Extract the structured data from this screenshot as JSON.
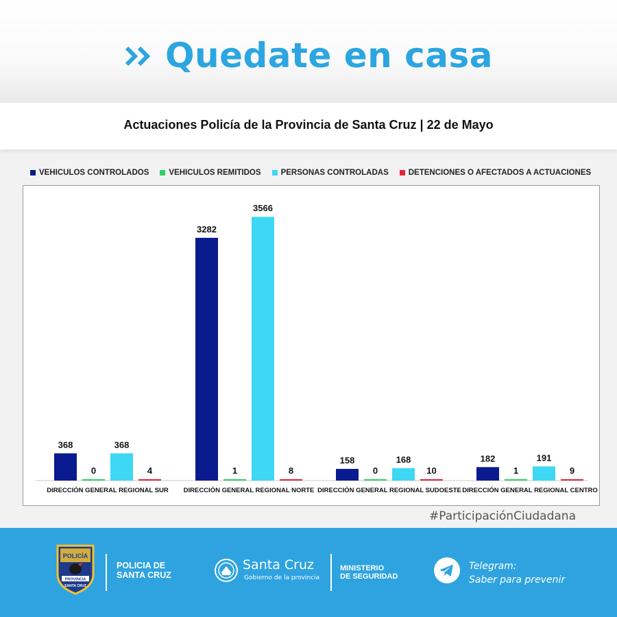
{
  "header": {
    "headline": "Quedate en casa",
    "headline_icon": "double-chevron-right-icon",
    "subtitle": "Actuaciones Policía de la Provincia de Santa Cruz | 22 de Mayo"
  },
  "chart_data": {
    "type": "bar",
    "title": "",
    "xlabel": "",
    "ylabel": "",
    "ylim": [
      0,
      3800
    ],
    "grid": false,
    "legend_position": "top",
    "categories": [
      "DIRECCIÓN GENERAL REGIONAL SUR",
      "DIRECCIÓN GENERAL REGIONAL NORTE",
      "DIRECCIÓN GENERAL REGIONAL SUDOESTE",
      "DIRECCIÓN GENERAL REGIONAL CENTRO"
    ],
    "series": [
      {
        "name": "VEHICULOS CONTROLADOS",
        "color": "#0a1a8f",
        "values": [
          368,
          3282,
          158,
          182
        ]
      },
      {
        "name": "VEHICULOS REMITIDOS",
        "color": "#2fd06a",
        "values": [
          0,
          1,
          0,
          1
        ]
      },
      {
        "name": "PERSONAS CONTROLADAS",
        "color": "#3ed7f4",
        "values": [
          368,
          3566,
          168,
          191
        ]
      },
      {
        "name": "DETENCIONES O AFECTADOS A ACTUACIONES",
        "color": "#e2253a",
        "values": [
          4,
          8,
          10,
          9
        ]
      }
    ]
  },
  "hashtag": "#ParticipaciónCiudadana",
  "footer": {
    "police_badge_text": "POLICÍA",
    "police_badge_sub1": "PROVINCIA",
    "police_badge_sub2": "SANTA CRUZ",
    "police_name_line1": "POLICIA DE",
    "police_name_line2": "SANTA CRUZ",
    "gov_title": "Santa Cruz",
    "gov_subtitle": "Gobierno de la provincia",
    "ministry_line1": "MINISTERIO",
    "ministry_line2": "DE SEGURIDAD",
    "telegram_line1": "Telegram:",
    "telegram_line2": "Saber para prevenir",
    "telegram_icon": "telegram-icon",
    "footer_color": "#2ea3e0"
  }
}
